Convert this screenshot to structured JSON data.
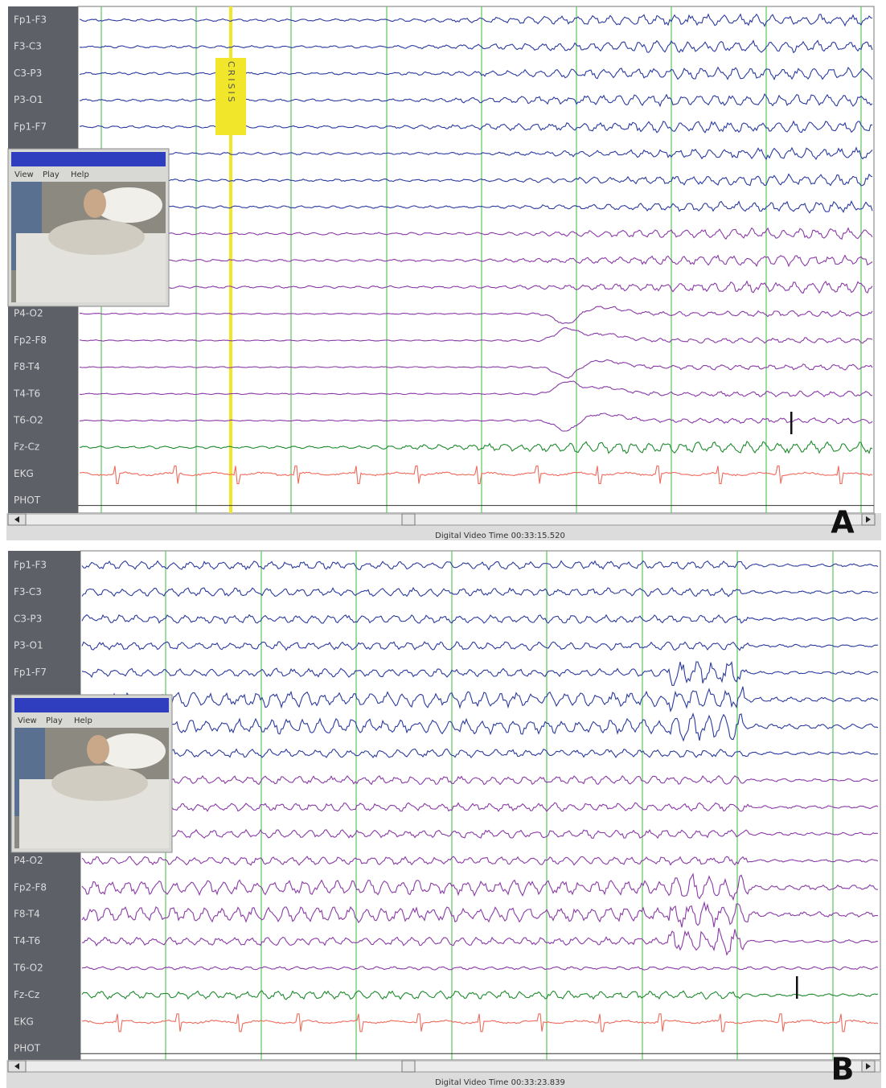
{
  "panels": [
    {
      "label": "A",
      "channels": [
        "Fp1-F3",
        "F3-C3",
        "C3-P3",
        "P3-O1",
        "Fp1-F7",
        null,
        null,
        null,
        null,
        null,
        null,
        "P4-O2",
        "Fp2-F8",
        "F8-T4",
        "T4-T6",
        "T6-O2",
        "Fz-Cz",
        "EKG",
        "PHOT"
      ],
      "menu": [
        "View",
        "Play",
        "Help"
      ],
      "annotation": "CRISIS",
      "status": "Digital Video Time 00:33:15.520"
    },
    {
      "label": "B",
      "channels": [
        "Fp1-F3",
        "F3-C3",
        "C3-P3",
        "P3-O1",
        "Fp1-F7",
        null,
        null,
        null,
        null,
        null,
        null,
        "P4-O2",
        "Fp2-F8",
        "F8-T4",
        "T4-T6",
        "T6-O2",
        "Fz-Cz",
        "EKG",
        "PHOT"
      ],
      "menu": [
        "View",
        "Play",
        "Help"
      ],
      "status": "Digital Video Time 00:33:23.839"
    }
  ]
}
